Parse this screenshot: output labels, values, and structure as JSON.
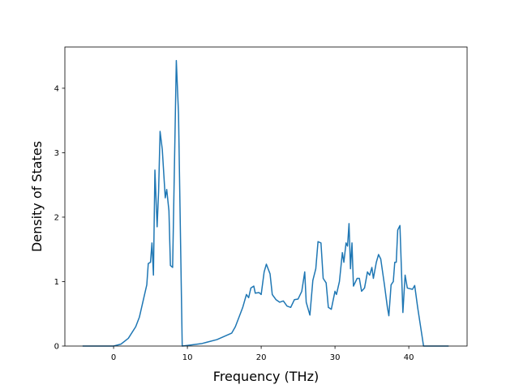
{
  "chart_data": {
    "type": "line",
    "xlabel": "Frequency (THz)",
    "ylabel": "Density of States",
    "xlim": [
      -6.6,
      47.9
    ],
    "ylim": [
      0,
      4.64
    ],
    "xticks": [
      0,
      10,
      20,
      30,
      40
    ],
    "yticks": [
      0,
      1,
      2,
      3,
      4
    ],
    "grid": false,
    "series": [
      {
        "color": "#1f77b4",
        "x": [
          -4.2,
          0,
          1,
          2,
          3,
          3.5,
          4,
          4.5,
          4.7,
          5,
          5.2,
          5.4,
          5.6,
          5.9,
          6.1,
          6.3,
          6.6,
          7.0,
          7.2,
          7.5,
          7.7,
          8.0,
          8.5,
          8.8,
          9.3,
          10,
          12,
          14,
          16,
          16.5,
          17,
          17.5,
          18,
          18.3,
          18.6,
          19,
          19.2,
          19.7,
          20,
          20.4,
          20.7,
          21.2,
          21.5,
          22,
          22.5,
          23,
          23.5,
          24,
          24.5,
          25,
          25.5,
          25.9,
          26.1,
          26.6,
          27,
          27.4,
          27.7,
          28.1,
          28.4,
          28.8,
          29.1,
          29.5,
          30,
          30.2,
          30.6,
          31,
          31.2,
          31.5,
          31.7,
          31.9,
          32.1,
          32.3,
          32.5,
          33,
          33.3,
          33.6,
          34,
          34.4,
          34.7,
          35,
          35.2,
          35.6,
          35.9,
          36.2,
          36.7,
          37.1,
          37.3,
          37.6,
          37.9,
          38.1,
          38.3,
          38.5,
          38.8,
          39.2,
          39.5,
          39.8,
          40.5,
          40.8,
          41.2,
          41.6,
          42,
          45.4
        ],
        "values": [
          0,
          0,
          0.03,
          0.12,
          0.3,
          0.45,
          0.7,
          0.95,
          1.28,
          1.3,
          1.6,
          1.1,
          2.73,
          1.85,
          2.4,
          3.33,
          3.05,
          2.3,
          2.43,
          2.1,
          1.25,
          1.22,
          4.43,
          3.6,
          0,
          0.01,
          0.04,
          0.1,
          0.2,
          0.3,
          0.45,
          0.6,
          0.8,
          0.75,
          0.9,
          0.93,
          0.82,
          0.83,
          0.8,
          1.15,
          1.27,
          1.12,
          0.8,
          0.72,
          0.68,
          0.7,
          0.62,
          0.6,
          0.72,
          0.73,
          0.85,
          1.15,
          0.68,
          0.48,
          1.02,
          1.2,
          1.62,
          1.6,
          1.05,
          0.98,
          0.6,
          0.57,
          0.85,
          0.8,
          1.0,
          1.45,
          1.3,
          1.6,
          1.55,
          1.9,
          1.2,
          1.6,
          0.93,
          1.05,
          1.05,
          0.85,
          0.9,
          1.15,
          1.1,
          1.22,
          1.05,
          1.3,
          1.42,
          1.35,
          0.95,
          0.6,
          0.47,
          0.95,
          1.0,
          1.3,
          1.3,
          1.8,
          1.87,
          0.52,
          1.1,
          0.9,
          0.88,
          0.94,
          0.6,
          0.3,
          0,
          0
        ]
      }
    ]
  }
}
